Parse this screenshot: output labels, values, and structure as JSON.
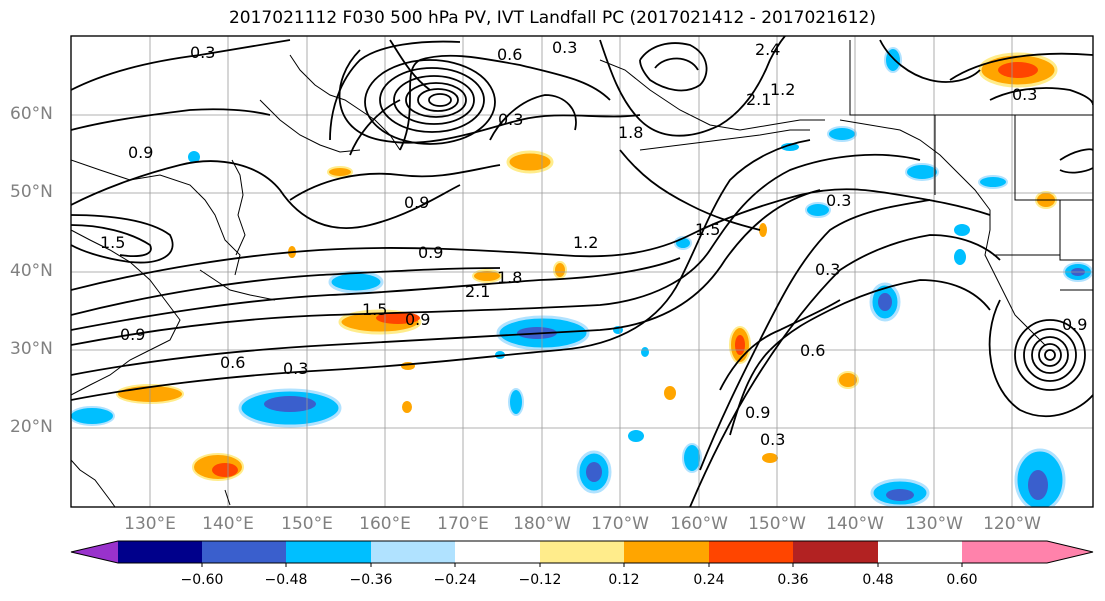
{
  "title": "2017021112 F030 500 hPa PV, IVT Landfall PC (2017021412 - 2017021612)",
  "lat_labels": [
    "60°N",
    "50°N",
    "40°N",
    "30°N",
    "20°N"
  ],
  "lon_labels": [
    "130°E",
    "140°E",
    "150°E",
    "160°E",
    "170°E",
    "180°W",
    "170°W",
    "160°W",
    "150°W",
    "140°W",
    "130°W",
    "120°W"
  ],
  "contour_labels": [
    "0.3",
    "0.6",
    "0.3",
    "0.9",
    "1.5",
    "0.3",
    "0.9",
    "0.9",
    "1.2",
    "0.9",
    "1.8",
    "2.1",
    "1.5",
    "0.9",
    "0.6",
    "0.3",
    "0.3",
    "0.3",
    "0.6",
    "0.9",
    "0.3",
    "0.3",
    "1.8",
    "1.5",
    "2.4",
    "2.1",
    "1.2",
    "0.9"
  ],
  "colorbar": {
    "ticks": [
      "−0.60",
      "−0.48",
      "−0.36",
      "−0.24",
      "−0.12",
      "0.12",
      "0.24",
      "0.36",
      "0.48",
      "0.60"
    ],
    "colors": [
      "#9932cc",
      "#00008b",
      "#3a5fcd",
      "#00bfff",
      "#b0e2ff",
      "#ffffff",
      "#ffec8b",
      "#ffa500",
      "#ff4500",
      "#b22222",
      "#ff82ab"
    ]
  }
}
